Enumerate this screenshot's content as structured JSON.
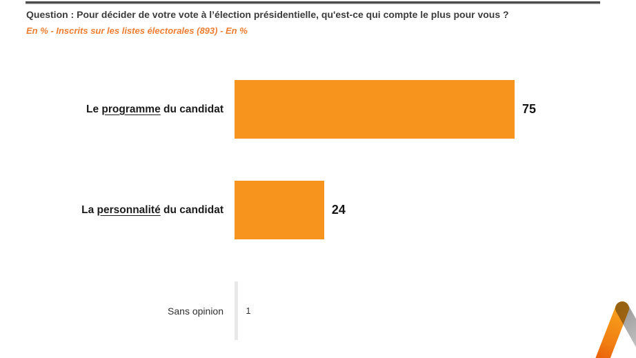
{
  "header": {
    "question": "Question : Pour décider de votre vote à l’élection présidentielle, qu'est-ce qui compte le plus pour vous ?",
    "subtitle": "En % - Inscrits sur les listes électorales (893) - En %"
  },
  "chart_data": {
    "type": "bar",
    "orientation": "horizontal",
    "title": "",
    "xlabel": "",
    "ylabel": "",
    "xlim": [
      0,
      100
    ],
    "grid": false,
    "legend": "none",
    "categories": [
      "Le programme du candidat",
      "La personnalité du candidat",
      "Sans opinion"
    ],
    "values": [
      75,
      24,
      1
    ],
    "value_labels": [
      "75",
      "24",
      "1"
    ],
    "bar_colors": [
      "#F7941E",
      "#F7941E",
      "#E8E8E8"
    ]
  },
  "rows": [
    {
      "prefix": "Le ",
      "underlined": "programme",
      "suffix": " du candidat",
      "value": "75"
    },
    {
      "prefix": "La ",
      "underlined": "personnalité",
      "suffix": " du candidat",
      "value": "24"
    },
    {
      "prefix": "Sans opinion",
      "underlined": "",
      "suffix": "",
      "value": "1"
    }
  ],
  "colors": {
    "bar_orange": "#F7941E",
    "bar_gray": "#E8E8E8",
    "subtitle_orange": "#ED7D31",
    "question_text": "#3B3B3B",
    "rule_dark": "#3F3F3F",
    "logo_orange_top": "#F8A11C",
    "logo_orange_bottom": "#E9540A",
    "logo_gray": "#ABABAB"
  },
  "logo": {
    "name": "peak-logo"
  }
}
